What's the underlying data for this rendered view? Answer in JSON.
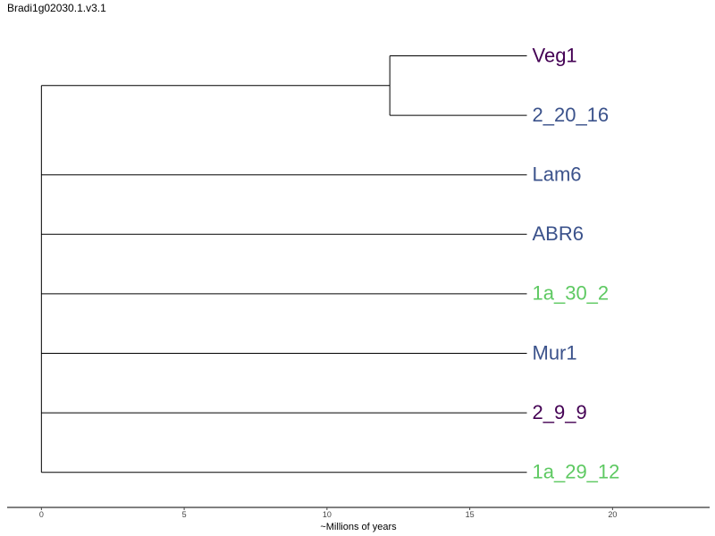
{
  "figure": {
    "title": "Bradi1g02030.1.v3.1"
  },
  "chart_data": {
    "type": "dendrogram",
    "xlabel": "~Millions of years",
    "x_ticks": [
      0,
      5,
      10,
      15,
      20
    ],
    "xlim": [
      -1.2,
      23.4
    ],
    "tips": [
      {
        "label": "Veg1",
        "color": "#440154"
      },
      {
        "label": "2_20_16",
        "color": "#3b528b"
      },
      {
        "label": "Lam6",
        "color": "#3b528b"
      },
      {
        "label": "ABR6",
        "color": "#3b528b"
      },
      {
        "label": "1a_30_2",
        "color": "#5ec962"
      },
      {
        "label": "Mur1",
        "color": "#3b528b"
      },
      {
        "label": "2_9_9",
        "color": "#440154"
      },
      {
        "label": "1a_29_12",
        "color": "#5ec962"
      }
    ],
    "tree": {
      "depth": 0,
      "children": [
        {
          "depth": 0,
          "children": [
            {
              "depth": 12.2,
              "children": [
                {
                  "tip": 0,
                  "depth": 17.0
                },
                {
                  "tip": 1,
                  "depth": 17.0
                }
              ]
            }
          ]
        },
        {
          "tip": 2,
          "depth": 17.0
        },
        {
          "tip": 3,
          "depth": 17.0
        },
        {
          "tip": 4,
          "depth": 17.0
        },
        {
          "tip": 5,
          "depth": 17.0
        },
        {
          "tip": 6,
          "depth": 17.0
        },
        {
          "tip": 7,
          "depth": 17.0
        }
      ]
    }
  }
}
